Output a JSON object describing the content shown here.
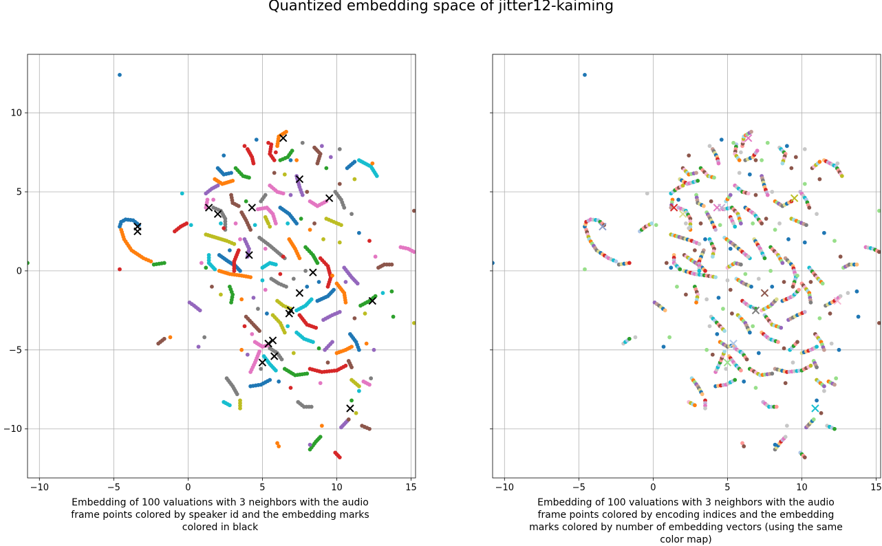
{
  "title": "Quantized embedding space of jitter12-kaiming",
  "chart_data": [
    {
      "type": "scatter",
      "title": "",
      "xlabel": "Embedding of 100 valuations with 3 neighbors with the audio frame points colored by speaker id and the embedding marks colored in black",
      "ylabel": "",
      "xlim": [
        -10.8,
        15.3
      ],
      "ylim": [
        -13.1,
        13.7
      ],
      "xticks": [
        -10,
        -5,
        0,
        5,
        10,
        15
      ],
      "yticks": [
        -10,
        -5,
        0,
        5,
        10
      ],
      "grid": true,
      "point_color_mode": "speaker",
      "mark_color": "#000000",
      "marks": [
        [
          -3.4,
          2.8
        ],
        [
          -3.4,
          2.5
        ],
        [
          1.4,
          4.0
        ],
        [
          2.0,
          3.6
        ],
        [
          4.3,
          4.0
        ],
        [
          4.1,
          1.0
        ],
        [
          6.4,
          8.4
        ],
        [
          7.5,
          5.8
        ],
        [
          9.5,
          4.6
        ],
        [
          8.4,
          -0.1
        ],
        [
          7.5,
          -1.4
        ],
        [
          6.9,
          -2.5
        ],
        [
          6.8,
          -2.7
        ],
        [
          12.4,
          -1.9
        ],
        [
          5.4,
          -4.6
        ],
        [
          5.7,
          -4.4
        ],
        [
          5.8,
          -5.4
        ],
        [
          5.0,
          -5.8
        ],
        [
          10.9,
          -8.7
        ]
      ]
    },
    {
      "type": "scatter",
      "title": "",
      "xlabel": "Embedding of 100 valuations with 3 neighbors with the audio frame points colored by encoding indices and the embedding marks colored by number of embedding vectors (using the same color map)",
      "ylabel": "",
      "xlim": [
        -10.8,
        15.3
      ],
      "ylim": [
        -13.1,
        13.7
      ],
      "xticks": [
        -10,
        -5,
        0,
        5,
        10,
        15
      ],
      "yticks": [
        -10,
        -5,
        0,
        5,
        10
      ],
      "grid": true,
      "point_color_mode": "index",
      "marks": [
        [
          -3.4,
          2.8,
          "#8c9ec9"
        ],
        [
          1.4,
          4.0,
          "#d62728"
        ],
        [
          2.0,
          3.6,
          "#dbdb8d"
        ],
        [
          4.3,
          4.0,
          "#e377c2"
        ],
        [
          4.6,
          4.0,
          "#c5b0d5"
        ],
        [
          6.4,
          8.4,
          "#e377c2"
        ],
        [
          9.5,
          4.6,
          "#bcbd22"
        ],
        [
          7.5,
          -1.4,
          "#8c564b"
        ],
        [
          6.9,
          -2.5,
          "#7f7f7f"
        ],
        [
          12.4,
          -1.9,
          "#f7b6d2"
        ],
        [
          5.4,
          -4.6,
          "#aec7e8"
        ],
        [
          5.0,
          -5.8,
          "#98df8a"
        ],
        [
          10.9,
          -8.7,
          "#17becf"
        ]
      ]
    }
  ],
  "curves": [
    [
      [
        -4.6,
        2.8
      ],
      [
        -4.5,
        3.1
      ],
      [
        -4.2,
        3.25
      ],
      [
        -3.7,
        3.2
      ],
      [
        -3.3,
        2.9
      ]
    ],
    [
      [
        -4.5,
        2.6
      ],
      [
        -4.3,
        2.0
      ],
      [
        -3.8,
        1.3
      ],
      [
        -3.0,
        0.8
      ],
      [
        -2.5,
        0.6
      ]
    ],
    [
      [
        -2.3,
        0.4
      ],
      [
        -1.6,
        0.5
      ]
    ],
    [
      [
        -0.9,
        2.5
      ],
      [
        -0.5,
        2.8
      ],
      [
        -0.1,
        3.0
      ]
    ],
    [
      [
        0.1,
        -2.0
      ],
      [
        0.4,
        -2.2
      ],
      [
        0.8,
        -2.5
      ]
    ],
    [
      [
        -2.0,
        -4.6
      ],
      [
        -1.6,
        -4.3
      ]
    ],
    [
      [
        1.3,
        4.5
      ],
      [
        1.2,
        4.0
      ]
    ],
    [
      [
        1.7,
        4.0
      ],
      [
        2.2,
        3.8
      ],
      [
        2.5,
        3.3
      ],
      [
        2.5,
        2.6
      ]
    ],
    [
      [
        1.2,
        2.3
      ],
      [
        1.9,
        2.1
      ],
      [
        2.6,
        1.9
      ],
      [
        3.1,
        1.7
      ]
    ],
    [
      [
        1.4,
        1.0
      ],
      [
        1.4,
        0.5
      ],
      [
        1.8,
        0.1
      ]
    ],
    [
      [
        2.1,
        1.0
      ],
      [
        2.7,
        0.6
      ],
      [
        3.2,
        0.3
      ],
      [
        3.5,
        0.0
      ]
    ],
    [
      [
        2.1,
        0.0
      ],
      [
        2.8,
        -0.2
      ],
      [
        3.6,
        -0.3
      ],
      [
        4.2,
        -0.4
      ]
    ],
    [
      [
        2.8,
        -1.0
      ],
      [
        3.0,
        -1.5
      ],
      [
        2.9,
        -2.0
      ]
    ],
    [
      [
        3.4,
        1.3
      ],
      [
        3.1,
        0.6
      ],
      [
        3.1,
        0.0
      ]
    ],
    [
      [
        3.8,
        2.0
      ],
      [
        4.1,
        1.4
      ],
      [
        4.0,
        0.9
      ]
    ],
    [
      [
        3.6,
        3.7
      ],
      [
        3.9,
        3.2
      ],
      [
        4.2,
        2.6
      ]
    ],
    [
      [
        4.7,
        3.9
      ],
      [
        5.3,
        4.0
      ],
      [
        5.7,
        3.6
      ],
      [
        5.9,
        3.0
      ]
    ],
    [
      [
        4.8,
        2.1
      ],
      [
        5.5,
        1.6
      ],
      [
        6.0,
        1.2
      ],
      [
        6.5,
        0.8
      ]
    ],
    [
      [
        5.2,
        3.4
      ],
      [
        5.4,
        3.0
      ],
      [
        5.5,
        2.8
      ]
    ],
    [
      [
        5.0,
        0.2
      ],
      [
        5.5,
        0.5
      ],
      [
        5.9,
        0.4
      ]
    ],
    [
      [
        6.2,
        4.0
      ],
      [
        6.8,
        3.6
      ],
      [
        7.3,
        3.0
      ]
    ],
    [
      [
        6.0,
        7.9
      ],
      [
        6.1,
        8.5
      ],
      [
        6.6,
        8.8
      ]
    ],
    [
      [
        6.2,
        7.0
      ],
      [
        6.7,
        7.2
      ],
      [
        7.0,
        7.6
      ]
    ],
    [
      [
        5.6,
        8.0
      ],
      [
        5.5,
        7.4
      ],
      [
        5.8,
        7.0
      ]
    ],
    [
      [
        7.3,
        6.0
      ],
      [
        7.5,
        5.3
      ],
      [
        7.7,
        4.8
      ]
    ],
    [
      [
        8.5,
        7.8
      ],
      [
        8.9,
        7.4
      ],
      [
        8.7,
        6.8
      ]
    ],
    [
      [
        8.2,
        4.4
      ],
      [
        8.7,
        4.1
      ],
      [
        9.3,
        4.4
      ]
    ],
    [
      [
        9.9,
        5.0
      ],
      [
        10.3,
        4.5
      ],
      [
        10.5,
        4.0
      ]
    ],
    [
      [
        9.3,
        3.3
      ],
      [
        9.8,
        3.1
      ],
      [
        10.3,
        2.9
      ]
    ],
    [
      [
        11.5,
        7.0
      ],
      [
        12.3,
        6.6
      ],
      [
        12.7,
        6.0
      ]
    ],
    [
      [
        10.7,
        6.5
      ],
      [
        11.2,
        6.9
      ]
    ],
    [
      [
        6.8,
        2.0
      ],
      [
        7.2,
        1.4
      ],
      [
        7.5,
        0.8
      ]
    ],
    [
      [
        7.9,
        1.5
      ],
      [
        8.4,
        1.0
      ],
      [
        8.7,
        0.5
      ]
    ],
    [
      [
        8.9,
        0.8
      ],
      [
        9.4,
        0.3
      ],
      [
        9.6,
        -0.4
      ],
      [
        9.4,
        -1.0
      ]
    ],
    [
      [
        10.5,
        0.2
      ],
      [
        11.0,
        -0.4
      ],
      [
        11.4,
        -0.8
      ]
    ],
    [
      [
        12.8,
        0.2
      ],
      [
        13.2,
        0.4
      ],
      [
        13.7,
        0.4
      ]
    ],
    [
      [
        14.3,
        1.5
      ],
      [
        14.8,
        1.4
      ],
      [
        15.2,
        1.2
      ]
    ],
    [
      [
        5.6,
        -0.5
      ],
      [
        6.1,
        -0.8
      ],
      [
        6.6,
        -1.0
      ]
    ],
    [
      [
        6.0,
        -1.9
      ],
      [
        6.4,
        -2.2
      ],
      [
        6.9,
        -2.4
      ]
    ],
    [
      [
        7.3,
        -2.5
      ],
      [
        7.9,
        -2.2
      ],
      [
        8.3,
        -1.8
      ]
    ],
    [
      [
        8.7,
        -1.9
      ],
      [
        9.4,
        -1.6
      ],
      [
        9.8,
        -1.2
      ]
    ],
    [
      [
        10.0,
        -0.8
      ],
      [
        10.5,
        -1.4
      ],
      [
        10.6,
        -2.0
      ]
    ],
    [
      [
        11.6,
        -2.2
      ],
      [
        12.2,
        -1.9
      ],
      [
        12.6,
        -1.6
      ]
    ],
    [
      [
        7.5,
        -2.8
      ],
      [
        8.0,
        -3.4
      ],
      [
        8.6,
        -3.6
      ]
    ],
    [
      [
        9.1,
        -3.1
      ],
      [
        9.7,
        -2.8
      ],
      [
        10.2,
        -2.6
      ]
    ],
    [
      [
        3.9,
        -2.9
      ],
      [
        4.4,
        -3.4
      ],
      [
        4.8,
        -3.8
      ]
    ],
    [
      [
        4.5,
        -4.5
      ],
      [
        5.0,
        -4.8
      ],
      [
        5.4,
        -4.7
      ]
    ],
    [
      [
        5.5,
        -4.9
      ],
      [
        6.0,
        -5.2
      ],
      [
        6.3,
        -5.6
      ]
    ],
    [
      [
        5.7,
        -2.8
      ],
      [
        6.2,
        -3.3
      ],
      [
        6.5,
        -3.9
      ]
    ],
    [
      [
        7.3,
        -3.9
      ],
      [
        7.8,
        -4.3
      ],
      [
        8.4,
        -4.5
      ]
    ],
    [
      [
        10.9,
        -4.0
      ],
      [
        11.3,
        -4.5
      ],
      [
        11.5,
        -5.0
      ]
    ],
    [
      [
        10.0,
        -5.2
      ],
      [
        10.6,
        -5.0
      ],
      [
        11.0,
        -4.8
      ]
    ],
    [
      [
        6.5,
        -6.2
      ],
      [
        7.2,
        -6.6
      ],
      [
        8.0,
        -6.5
      ]
    ],
    [
      [
        8.2,
        -6.2
      ],
      [
        9.0,
        -6.4
      ],
      [
        10.0,
        -6.3
      ],
      [
        10.6,
        -6.0
      ]
    ],
    [
      [
        9.2,
        -5.0
      ],
      [
        9.7,
        -4.5
      ]
    ],
    [
      [
        10.8,
        -5.7
      ],
      [
        11.0,
        -6.1
      ]
    ],
    [
      [
        4.2,
        -6.4
      ],
      [
        4.5,
        -5.8
      ],
      [
        4.8,
        -5.1
      ]
    ],
    [
      [
        2.6,
        -6.8
      ],
      [
        3.0,
        -7.3
      ],
      [
        3.3,
        -7.8
      ]
    ],
    [
      [
        3.5,
        -8.2
      ],
      [
        3.5,
        -8.7
      ]
    ],
    [
      [
        2.4,
        -8.3
      ],
      [
        2.8,
        -8.5
      ]
    ],
    [
      [
        4.2,
        -7.3
      ],
      [
        4.9,
        -7.2
      ],
      [
        5.5,
        -6.9
      ]
    ],
    [
      [
        6.0,
        -10.9
      ],
      [
        6.1,
        -11.1
      ]
    ],
    [
      [
        8.2,
        -11.3
      ],
      [
        8.6,
        -10.8
      ],
      [
        8.9,
        -10.5
      ]
    ],
    [
      [
        9.9,
        -11.5
      ],
      [
        10.2,
        -11.8
      ]
    ],
    [
      [
        10.3,
        -9.9
      ],
      [
        10.7,
        -9.5
      ]
    ],
    [
      [
        11.7,
        -9.8
      ],
      [
        12.2,
        -10.0
      ]
    ],
    [
      [
        11.8,
        -7.0
      ],
      [
        12.2,
        -7.2
      ]
    ],
    [
      [
        7.4,
        -8.3
      ],
      [
        7.8,
        -8.6
      ],
      [
        8.3,
        -8.6
      ]
    ],
    [
      [
        11.0,
        -6.9
      ],
      [
        11.5,
        -7.3
      ]
    ],
    [
      [
        5.1,
        -5.4
      ],
      [
        5.5,
        -5.9
      ],
      [
        5.9,
        -6.3
      ]
    ],
    [
      [
        2.0,
        6.5
      ],
      [
        2.4,
        6.1
      ],
      [
        2.9,
        6.2
      ]
    ],
    [
      [
        1.8,
        5.8
      ],
      [
        2.3,
        5.5
      ],
      [
        3.0,
        5.7
      ]
    ],
    [
      [
        3.2,
        6.5
      ],
      [
        3.7,
        6.0
      ],
      [
        4.1,
        5.9
      ]
    ],
    [
      [
        4.0,
        7.7
      ],
      [
        4.3,
        7.2
      ],
      [
        4.4,
        6.8
      ]
    ],
    [
      [
        1.2,
        4.9
      ],
      [
        1.6,
        5.2
      ],
      [
        2.0,
        5.4
      ]
    ],
    [
      [
        2.9,
        4.8
      ],
      [
        3.0,
        4.3
      ],
      [
        3.4,
        4.1
      ]
    ],
    [
      [
        5.5,
        5.4
      ],
      [
        6.0,
        5.0
      ],
      [
        6.4,
        4.9
      ]
    ],
    [
      [
        4.9,
        4.4
      ],
      [
        5.2,
        4.8
      ]
    ]
  ],
  "scatter": [
    [
      -4.6,
      12.4
    ],
    [
      -4.6,
      0.1
    ],
    [
      0.9,
      0.5
    ],
    [
      -0.4,
      4.9
    ],
    [
      -10.8,
      0.5
    ],
    [
      15.2,
      3.8
    ],
    [
      15.2,
      -3.3
    ],
    [
      -1.2,
      -4.2
    ],
    [
      0.7,
      -4.8
    ],
    [
      1.1,
      -4.2
    ],
    [
      2.4,
      7.3
    ],
    [
      3.8,
      7.9
    ],
    [
      1.7,
      4.5
    ],
    [
      0.2,
      2.9
    ],
    [
      9.3,
      6.5
    ],
    [
      8.0,
      5.0
    ],
    [
      9.1,
      2.0
    ],
    [
      8.2,
      2.6
    ],
    [
      6.9,
      4.8
    ],
    [
      11.0,
      3.6
    ],
    [
      11.5,
      2.4
    ],
    [
      12.2,
      1.9
    ],
    [
      12.6,
      0.9
    ],
    [
      13.1,
      -1.4
    ],
    [
      13.7,
      -1.3
    ],
    [
      11.2,
      -3.0
    ],
    [
      11.9,
      -2.7
    ],
    [
      12.0,
      -4.6
    ],
    [
      12.5,
      -5.0
    ],
    [
      7.9,
      0.0
    ],
    [
      8.8,
      -0.7
    ],
    [
      6.4,
      0.9
    ],
    [
      5.2,
      1.4
    ],
    [
      4.5,
      2.9
    ],
    [
      3.9,
      4.4
    ],
    [
      5.8,
      6.2
    ],
    [
      6.5,
      6.1
    ],
    [
      7.3,
      7.0
    ],
    [
      9.6,
      7.2
    ],
    [
      10.2,
      7.7
    ],
    [
      4.6,
      8.3
    ],
    [
      5.4,
      8.1
    ],
    [
      3.2,
      3.0
    ],
    [
      2.2,
      3.0
    ],
    [
      1.2,
      0.2
    ],
    [
      1.6,
      -1.0
    ],
    [
      2.2,
      -1.5
    ],
    [
      3.6,
      -1.8
    ],
    [
      4.4,
      -1.7
    ],
    [
      4.7,
      -2.4
    ],
    [
      5.3,
      -2.7
    ],
    [
      3.8,
      -3.5
    ],
    [
      4.3,
      -4.0
    ],
    [
      6.7,
      -3.5
    ],
    [
      8.8,
      -4.9
    ],
    [
      9.4,
      -5.8
    ],
    [
      7.1,
      -5.2
    ],
    [
      3.6,
      -5.0
    ],
    [
      4.0,
      -5.3
    ],
    [
      4.9,
      -6.2
    ],
    [
      6.1,
      -7.0
    ],
    [
      6.9,
      -7.4
    ],
    [
      8.9,
      -7.1
    ],
    [
      11.5,
      -7.6
    ],
    [
      11.0,
      -8.2
    ],
    [
      10.8,
      -9.4
    ],
    [
      11.3,
      -9.0
    ],
    [
      9.0,
      -9.8
    ],
    [
      8.2,
      -11.0
    ],
    [
      12.3,
      -6.8
    ],
    [
      2.8,
      1.3
    ],
    [
      2.4,
      2.7
    ],
    [
      3.5,
      2.0
    ],
    [
      6.7,
      3.0
    ],
    [
      7.6,
      3.3
    ],
    [
      8.5,
      3.0
    ],
    [
      10.2,
      1.8
    ],
    [
      9.7,
      -0.3
    ],
    [
      10.6,
      -0.7
    ],
    [
      7.1,
      -0.5
    ],
    [
      8.0,
      -1.0
    ],
    [
      6.2,
      -0.2
    ],
    [
      5.2,
      -1.2
    ],
    [
      5.0,
      -0.6
    ],
    [
      13.8,
      -2.9
    ],
    [
      10.2,
      5.5
    ],
    [
      11.2,
      5.8
    ],
    [
      12.4,
      6.8
    ],
    [
      9.0,
      7.9
    ],
    [
      7.7,
      8.1
    ],
    [
      6.9,
      7.0
    ],
    [
      5.9,
      7.5
    ]
  ]
}
